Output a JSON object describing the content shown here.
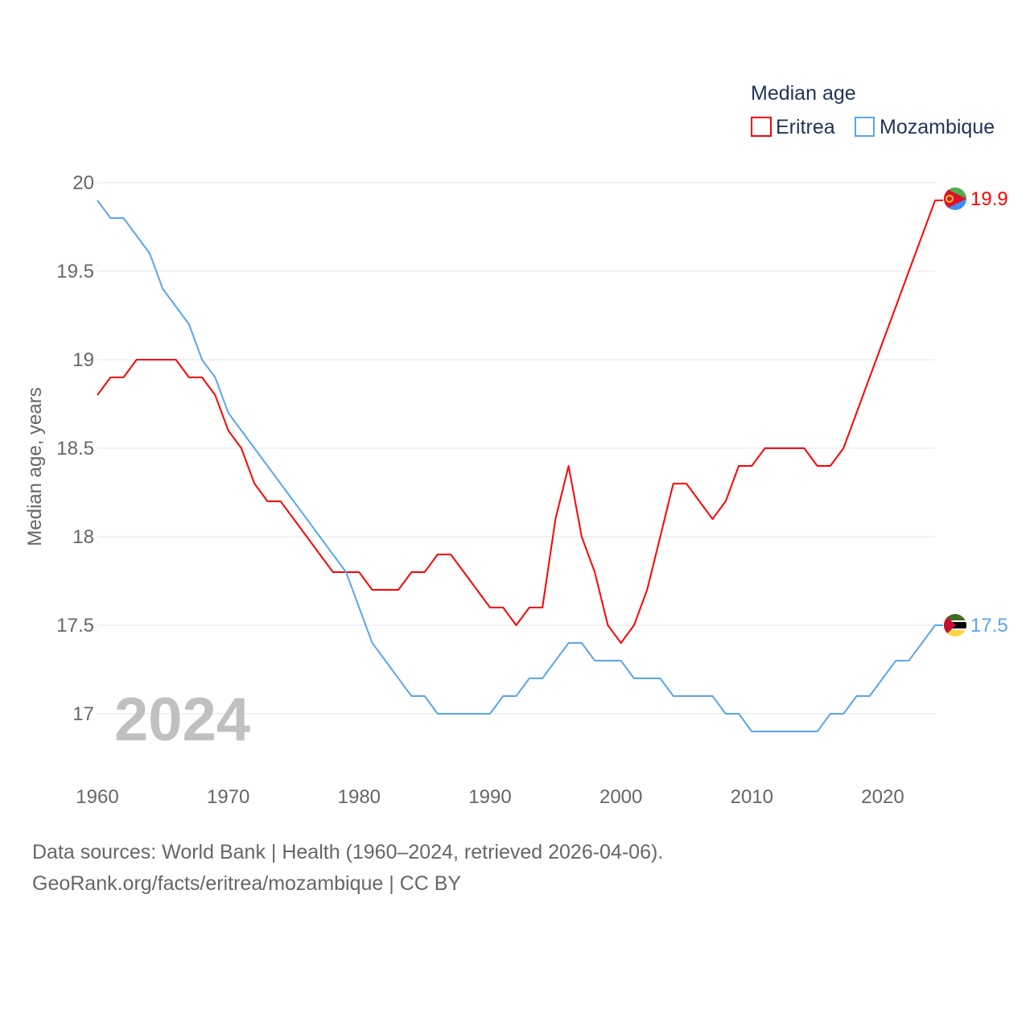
{
  "chart_data": {
    "type": "line",
    "title": "Median age",
    "ylabel": "Median age, years",
    "xlabel": "",
    "year_watermark": "2024",
    "xlim": [
      1960,
      2024
    ],
    "ylim": [
      16.75,
      20
    ],
    "x_ticks": [
      "1960",
      "1970",
      "1980",
      "1990",
      "2000",
      "2010",
      "2020"
    ],
    "y_ticks": [
      "17",
      "17.5",
      "18",
      "18.5",
      "19",
      "19.5",
      "20"
    ],
    "grid": true,
    "legend_position": "top-right",
    "x": [
      1960,
      1961,
      1962,
      1963,
      1964,
      1965,
      1966,
      1967,
      1968,
      1969,
      1970,
      1971,
      1972,
      1973,
      1974,
      1975,
      1976,
      1977,
      1978,
      1979,
      1980,
      1981,
      1982,
      1983,
      1984,
      1985,
      1986,
      1987,
      1988,
      1989,
      1990,
      1991,
      1992,
      1993,
      1994,
      1995,
      1996,
      1997,
      1998,
      1999,
      2000,
      2001,
      2002,
      2003,
      2004,
      2005,
      2006,
      2007,
      2008,
      2009,
      2010,
      2011,
      2012,
      2013,
      2014,
      2015,
      2016,
      2017,
      2018,
      2019,
      2020,
      2021,
      2022,
      2023,
      2024
    ],
    "series": [
      {
        "name": "Eritrea",
        "color": "#ff0000",
        "end_label": "19.9",
        "values": [
          18.8,
          18.9,
          18.9,
          19.0,
          19.0,
          19.0,
          19.0,
          18.9,
          18.9,
          18.8,
          18.6,
          18.5,
          18.3,
          18.2,
          18.2,
          18.1,
          18.0,
          17.9,
          17.8,
          17.8,
          17.8,
          17.7,
          17.7,
          17.7,
          17.8,
          17.8,
          17.9,
          17.9,
          17.8,
          17.7,
          17.6,
          17.6,
          17.5,
          17.6,
          17.6,
          18.1,
          18.4,
          18.0,
          17.8,
          17.5,
          17.4,
          17.5,
          17.7,
          18.0,
          18.3,
          18.3,
          18.2,
          18.1,
          18.2,
          18.4,
          18.4,
          18.5,
          18.5,
          18.5,
          18.5,
          18.4,
          18.4,
          18.5,
          18.7,
          18.9,
          19.1,
          19.3,
          19.5,
          19.7,
          19.9
        ]
      },
      {
        "name": "Mozambique",
        "color": "#5aa5ee",
        "end_label": "17.5",
        "values": [
          19.9,
          19.8,
          19.8,
          19.7,
          19.6,
          19.4,
          19.3,
          19.2,
          19.0,
          18.9,
          18.7,
          18.6,
          18.5,
          18.4,
          18.3,
          18.2,
          18.1,
          18.0,
          17.9,
          17.8,
          17.6,
          17.4,
          17.3,
          17.2,
          17.1,
          17.1,
          17.0,
          17.0,
          17.0,
          17.0,
          17.0,
          17.1,
          17.1,
          17.2,
          17.2,
          17.3,
          17.4,
          17.4,
          17.3,
          17.3,
          17.3,
          17.2,
          17.2,
          17.2,
          17.1,
          17.1,
          17.1,
          17.1,
          17.0,
          17.0,
          16.9,
          16.9,
          16.9,
          16.9,
          16.9,
          16.9,
          17.0,
          17.0,
          17.1,
          17.1,
          17.2,
          17.3,
          17.3,
          17.4,
          17.5
        ]
      }
    ]
  },
  "footer": {
    "sources": "Data sources: World Bank | Health (1960–2024, retrieved 2026-04-06).",
    "credit": "GeoRank.org/facts/eritrea/mozambique | CC BY"
  }
}
